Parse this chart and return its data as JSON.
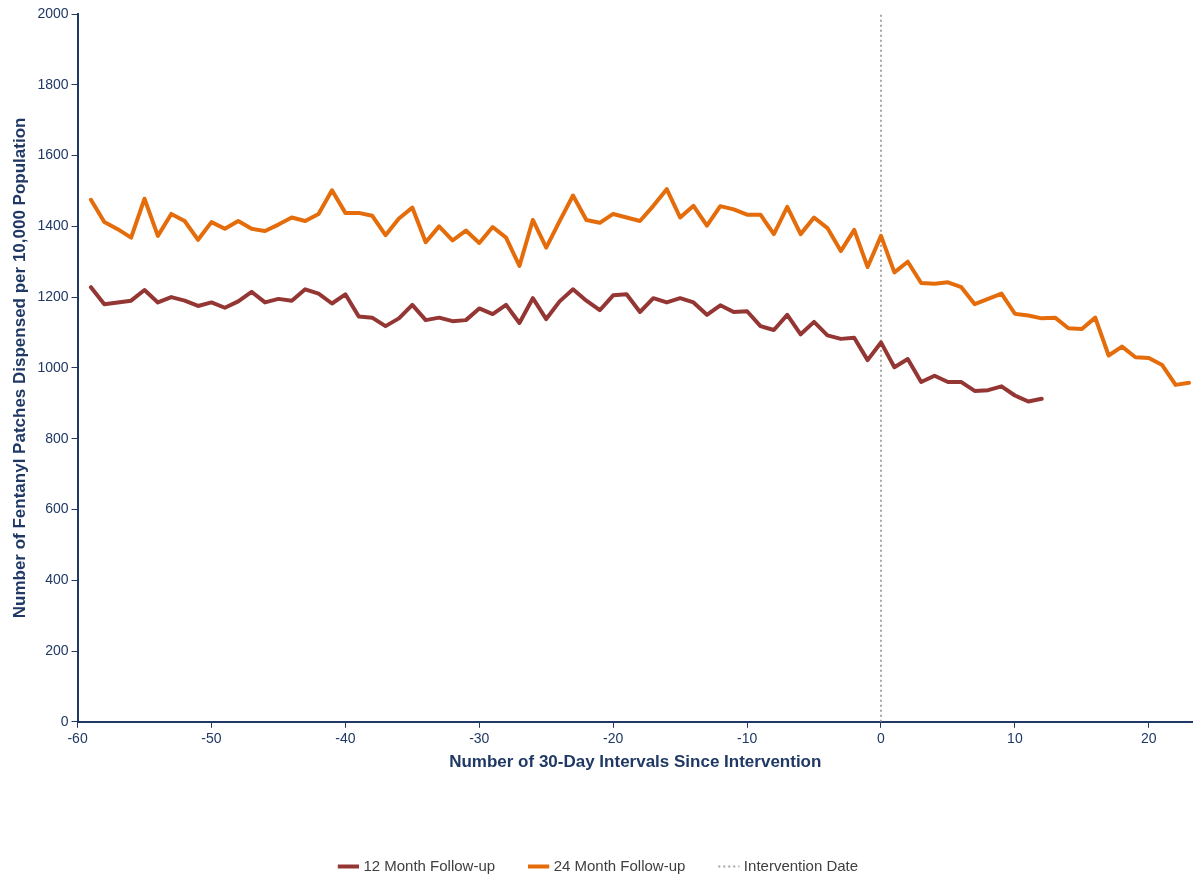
{
  "chart_data": {
    "type": "line",
    "xlabel": "Number of 30-Day Intervals Since Intervention",
    "ylabel": "Number of Fentanyl Patches Dispensed per 10,000 Population",
    "xlim": [
      -60,
      23.3
    ],
    "xticks": [
      -60,
      -50,
      -40,
      -30,
      -20,
      -10,
      0,
      10,
      20
    ],
    "ylim": [
      0,
      2000
    ],
    "yticks": [
      0,
      200,
      400,
      600,
      800,
      1000,
      1200,
      1400,
      1600,
      1800,
      2000
    ],
    "grid": false,
    "legend": "bottom",
    "marker": "none",
    "line_style": "solid",
    "x": [
      -59,
      -58,
      -57,
      -56,
      -55,
      -54,
      -53,
      -52,
      -51,
      -50,
      -49,
      -48,
      -47,
      -46,
      -45,
      -44,
      -43,
      -42,
      -41,
      -40,
      -39,
      -38,
      -37,
      -36,
      -35,
      -34,
      -33,
      -32,
      -31,
      -30,
      -29,
      -28,
      -27,
      -26,
      -25,
      -24,
      -23,
      -22,
      -21,
      -20,
      -19,
      -18,
      -17,
      -16,
      -15,
      -14,
      -13,
      -12,
      -11,
      -10,
      -9,
      -8,
      -7,
      -6,
      -5,
      -4,
      -3,
      -2,
      -1,
      0,
      1,
      2,
      3,
      4,
      5,
      6,
      7,
      8,
      9,
      10,
      11,
      12,
      13,
      14,
      15,
      16,
      17,
      18,
      19,
      20,
      21,
      22,
      23
    ],
    "series": [
      {
        "name": "12 Month Follow-up",
        "color": "#943634",
        "values": [
          1228,
          1180,
          1185,
          1190,
          1220,
          1185,
          1200,
          1190,
          1175,
          1185,
          1170,
          1188,
          1215,
          1185,
          1195,
          1190,
          1222,
          1210,
          1182,
          1208,
          1145,
          1142,
          1118,
          1140,
          1178,
          1135,
          1142,
          1132,
          1135,
          1168,
          1152,
          1178,
          1127,
          1197,
          1138,
          1188,
          1222,
          1190,
          1163,
          1205,
          1208,
          1158,
          1197,
          1185,
          1197,
          1185,
          1150,
          1177,
          1158,
          1160,
          1118,
          1107,
          1150,
          1095,
          1130,
          1092,
          1082,
          1085,
          1022,
          1072,
          1002,
          1025,
          960,
          978,
          960,
          960,
          935,
          937,
          948,
          922,
          905,
          913,
          null,
          null,
          null,
          null,
          null,
          null,
          null,
          null,
          null,
          null,
          null
        ]
      },
      {
        "name": "24 Month Follow-up",
        "color": "#e46c0a",
        "values": [
          1475,
          1412,
          1392,
          1368,
          1478,
          1373,
          1435,
          1415,
          1362,
          1412,
          1393,
          1415,
          1393,
          1387,
          1405,
          1425,
          1415,
          1435,
          1502,
          1438,
          1438,
          1430,
          1375,
          1422,
          1453,
          1355,
          1400,
          1360,
          1388,
          1353,
          1398,
          1368,
          1288,
          1418,
          1340,
          1415,
          1487,
          1418,
          1410,
          1435,
          1425,
          1415,
          1458,
          1505,
          1425,
          1458,
          1402,
          1457,
          1448,
          1433,
          1433,
          1378,
          1455,
          1378,
          1425,
          1395,
          1330,
          1390,
          1285,
          1373,
          1270,
          1300,
          1240,
          1238,
          1242,
          1228,
          1180,
          1195,
          1210,
          1153,
          1148,
          1140,
          1142,
          1112,
          1110,
          1142,
          1035,
          1060,
          1030,
          1028,
          1008,
          952,
          958
        ]
      }
    ],
    "ref_lines": [
      {
        "axis": "x",
        "value": 0,
        "label": "Intervention Date",
        "color": "#a6a6a6",
        "line_style": "dotted"
      }
    ]
  }
}
